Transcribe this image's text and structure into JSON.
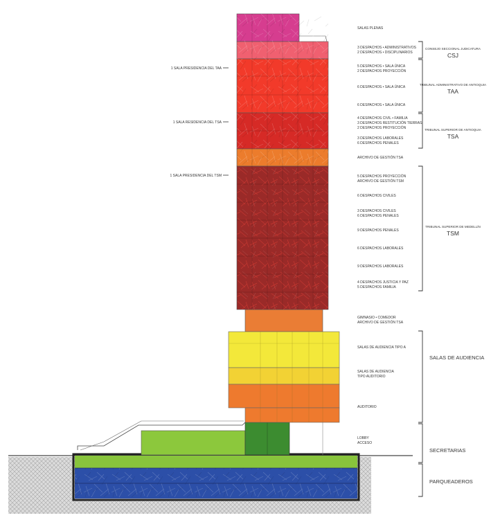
{
  "colors": {
    "salas_plenas": "#d63d8f",
    "csj": "#f06070",
    "taa": "#f23a2a",
    "tsa": "#d62a26",
    "archivo": "#ec7c2c",
    "tsm": "#9a2a28",
    "gimnasio": "#ea7d35",
    "audiencia_a": "#f3e83a",
    "audiencia_b": "#f2d234",
    "auditorio": "#ee7a2e",
    "lobby": "#3c8c30",
    "podium": "#8cc83c",
    "parking_top": "#88c43c",
    "parking_blue": "#2c4fa8"
  },
  "floors": [
    {
      "id": "salas-plenas",
      "label": "SALAS PLENAS"
    },
    {
      "id": "csj-1",
      "label": "3 DESPACHOS • ADMINISTRATIVOS"
    },
    {
      "id": "csj-2",
      "label": "2 DESPACHOS • DISCIPLINARIOS"
    },
    {
      "id": "taa-1",
      "label": "5 DESPACHOS • SALA ÚNICA"
    },
    {
      "id": "taa-2",
      "label": "2 DESPACHOS PROYECCIÓN"
    },
    {
      "id": "taa-3",
      "label": "6 DESPACHOS • SALA ÚNICA"
    },
    {
      "id": "taa-4",
      "label": "6 DESPACHOS • SALA ÚNICA"
    },
    {
      "id": "tsa-1",
      "label": "4 DESPACHOS CIVIL • FAMILIA"
    },
    {
      "id": "tsa-2",
      "label": "3 DESPACHOS RESTITUCIÓN TIERRAS"
    },
    {
      "id": "tsa-3",
      "label": "2 DESPACHOS PROYECCIÓN"
    },
    {
      "id": "tsa-4",
      "label": "3 DESPACHOS LABORALES"
    },
    {
      "id": "tsa-5",
      "label": "6 DESPACHOS PENALES"
    },
    {
      "id": "archivo-tsa",
      "label": "ARCHIVO DE GESTIÓN TSA"
    },
    {
      "id": "tsm-1",
      "label": "5 DESPACHOS PROYECCIÓN"
    },
    {
      "id": "tsm-2",
      "label": "ARCHIVO DE GESTIÓN TSM"
    },
    {
      "id": "tsm-3",
      "label": "6 DESPACHOS CIVILES"
    },
    {
      "id": "tsm-4",
      "label": "3 DESPACHOS CIVILES"
    },
    {
      "id": "tsm-5",
      "label": "6 DESPACHOS PENALES"
    },
    {
      "id": "tsm-6",
      "label": "9 DESPACHOS PENALES"
    },
    {
      "id": "tsm-7",
      "label": "6 DESPACHOS LABORALES"
    },
    {
      "id": "tsm-8",
      "label": "9 DESPACHOS LABORALES"
    },
    {
      "id": "tsm-9",
      "label": "4 DESPACHOS JUSTICIA Y PAZ"
    },
    {
      "id": "tsm-10",
      "label": "5 DESPACHOS FAMILIA"
    },
    {
      "id": "gim-1",
      "label": "GIMNASIO • COMEDOR"
    },
    {
      "id": "gim-2",
      "label": "ARCHIVO DE GESTIÓN TSA"
    },
    {
      "id": "aud-a",
      "label": "SALAS DE AUDIENCIA TIPO A"
    },
    {
      "id": "aud-b1",
      "label": "SALAS DE AUDIENCIA"
    },
    {
      "id": "aud-b2",
      "label": "TIPO AUDITORIO"
    },
    {
      "id": "auditorio",
      "label": "AUDITORIO"
    },
    {
      "id": "lobby",
      "label": "LOBBY"
    },
    {
      "id": "acceso",
      "label": "ACCESO"
    }
  ],
  "groups": [
    {
      "id": "csj",
      "subtitle": "CONSEJO SECCIONAL JUDICATURA",
      "title": "CSJ"
    },
    {
      "id": "taa",
      "subtitle": "TRIBUNAL ADMINISTRATIVO DE ANTIOQUIA",
      "title": "TAA"
    },
    {
      "id": "tsa",
      "subtitle": "TRIBUNAL SUPERIOR DE ANTIOQUIA",
      "title": "TSA"
    },
    {
      "id": "tsm",
      "subtitle": "TRIBUNAL SUPERIOR DE MEDELLÍN",
      "title": "TSM"
    }
  ],
  "sections": {
    "audiencia": "SALAS DE AUDIENCIA",
    "secretarias": "SECRETARIAS",
    "parqueaderos": "PARQUEADEROS"
  },
  "left_labels": {
    "taa": "1 SALA PRESIDENCIA DEL TAA",
    "tsa": "1 SALA RESIDENCIA DEL TSA",
    "tsm": "1 SALA PRESIDENCIA DEL TSM"
  }
}
